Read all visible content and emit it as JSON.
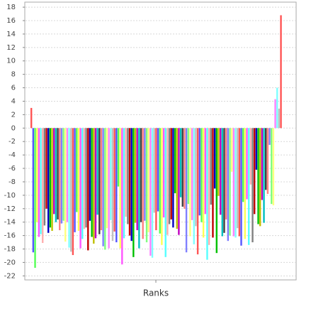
{
  "chart_data": {
    "type": "bar",
    "x_label": "Ranks",
    "values": [
      3,
      -18.5,
      -20.8,
      -14,
      -16.2,
      -15.8,
      -17.1,
      -14.5,
      -12,
      -15.6,
      -14.8,
      -15.3,
      -12.8,
      -14,
      -13.6,
      -15.2,
      -14.2,
      -13.8,
      -16.9,
      -14,
      -17.8,
      -18.4,
      -18.9,
      -15.5,
      -12.5,
      -15.3,
      -17.9,
      -16.5,
      -15,
      -14.8,
      -18.2,
      -13.8,
      -16.2,
      -17.2,
      -16.4,
      -12.9,
      -15.8,
      -15.2,
      -17.6,
      -18.1,
      -14.9,
      -17.9,
      -13.7,
      -16.8,
      -15.4,
      -17,
      -8.7,
      -17.9,
      -20.3,
      -16.4,
      -13.2,
      -14.3,
      -16,
      -16.8,
      -19.2,
      -14.1,
      -15.2,
      -17.9,
      -14,
      -16.5,
      -13.8,
      -17,
      -15.5,
      -19,
      -19.3,
      -12.6,
      -15.2,
      -12.4,
      -15.7,
      -17.4,
      -13.3,
      -19.2,
      -15.9,
      -14.3,
      -13.6,
      -14.8,
      -9.7,
      -15,
      -15.9,
      -10.3,
      -11.7,
      -12,
      -18.5,
      -11.3,
      -16.1,
      -13.7,
      -17.3,
      -14.6,
      -18.8,
      -13,
      -14,
      -16.3,
      -12.8,
      -19.6,
      -17.4,
      -11.4,
      -16.3,
      -9,
      -18.6,
      -10.1,
      -12.9,
      -16.1,
      -15.6,
      -13.6,
      -16.8,
      -16,
      -6.5,
      -16.1,
      -16.3,
      -14.9,
      -16.1,
      -17.5,
      -11,
      -16.5,
      -10.6,
      -17.4,
      -8.4,
      -17,
      -12.8,
      -6.2,
      -14.3,
      -14.6,
      -10.7,
      -14.1,
      -9.2,
      -9.8,
      -2.5,
      -11.3,
      -11.5,
      4.3,
      6,
      2.9,
      16.8
    ],
    "palette": [
      "#ff5555",
      "#5555ff",
      "#55ff55",
      "#ffff55",
      "#ff55ff",
      "#55ffff",
      "#ffafaf",
      "#808080",
      "#c00000",
      "#0000c0",
      "#00c000",
      "#c0c000",
      "#c000c0",
      "#00c0c0",
      "#404040",
      "#ff8080",
      "#8080ff",
      "#80ff80",
      "#ffff80",
      "#ff80ff",
      "#80ffff",
      "#c0c0c0"
    ],
    "ylim": [
      -22.6,
      18.75
    ],
    "yticks": [
      -22,
      -20,
      -18,
      -16,
      -14,
      -12,
      -10,
      -8,
      -6,
      -4,
      -2,
      0,
      2,
      4,
      6,
      8,
      10,
      12,
      14,
      16,
      18
    ],
    "grid": true
  }
}
